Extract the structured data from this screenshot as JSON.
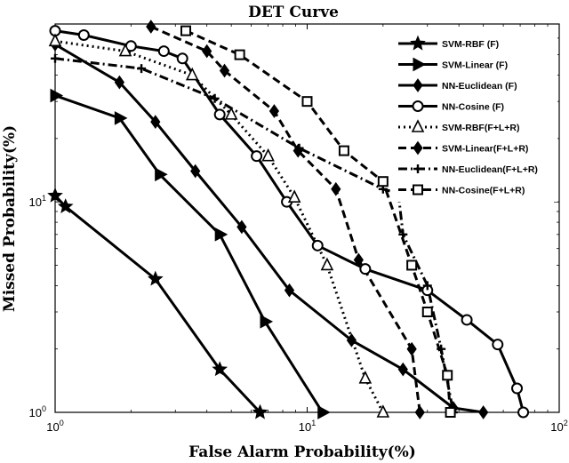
{
  "chart_data": {
    "type": "line",
    "title": "DET Curve",
    "xlabel": "False Alarm Probability(%)",
    "ylabel": "Missed Probability(%)",
    "xscale": "log",
    "yscale": "log",
    "xlim": [
      1,
      100
    ],
    "ylim": [
      1,
      70
    ],
    "xticks": [
      {
        "value": 1,
        "base": "10",
        "exp": "0"
      },
      {
        "value": 10,
        "base": "10",
        "exp": "1"
      },
      {
        "value": 100,
        "base": "10",
        "exp": "2"
      }
    ],
    "yticks": [
      {
        "value": 1,
        "base": "10",
        "exp": "0"
      },
      {
        "value": 10,
        "base": "10",
        "exp": "1"
      }
    ],
    "grid": false,
    "legend_position": "top-right",
    "series": [
      {
        "name": "SVM-RBF (F)",
        "dash": "solid",
        "marker": "star",
        "points": [
          [
            1.0,
            10.7
          ],
          [
            1.1,
            9.5
          ],
          [
            2.5,
            4.3
          ],
          [
            4.5,
            1.6
          ],
          [
            6.5,
            1.0
          ]
        ]
      },
      {
        "name": "SVM-Linear (F)",
        "dash": "solid",
        "marker": "triangle-right",
        "points": [
          [
            1.0,
            32
          ],
          [
            1.8,
            25
          ],
          [
            2.6,
            13.5
          ],
          [
            4.5,
            7.0
          ],
          [
            6.8,
            2.7
          ],
          [
            11.5,
            1.0
          ]
        ]
      },
      {
        "name": "NN-Euclidean (F)",
        "dash": "solid",
        "marker": "diamond",
        "points": [
          [
            1.0,
            56
          ],
          [
            1.8,
            37
          ],
          [
            2.5,
            24
          ],
          [
            3.6,
            14
          ],
          [
            5.5,
            7.6
          ],
          [
            8.5,
            3.8
          ],
          [
            15,
            2.2
          ],
          [
            24,
            1.6
          ],
          [
            38,
            1.05
          ],
          [
            50,
            1.0
          ]
        ]
      },
      {
        "name": "NN-Cosine (F)",
        "dash": "solid",
        "marker": "circle",
        "points": [
          [
            1.0,
            65
          ],
          [
            1.3,
            62
          ],
          [
            2.0,
            55
          ],
          [
            2.7,
            52
          ],
          [
            3.2,
            48
          ],
          [
            4.5,
            26
          ],
          [
            6.3,
            16.5
          ],
          [
            8.3,
            10
          ],
          [
            11,
            6.2
          ],
          [
            17,
            4.8
          ],
          [
            30,
            3.8
          ],
          [
            43,
            2.75
          ],
          [
            57,
            2.1
          ],
          [
            68,
            1.3
          ],
          [
            72,
            1.0
          ]
        ]
      },
      {
        "name": "SVM-RBF(F+L+R)",
        "dash": "dot",
        "marker": "triangle-up",
        "points": [
          [
            1.0,
            58
          ],
          [
            1.9,
            52
          ],
          [
            3.5,
            40
          ],
          [
            5.0,
            26
          ],
          [
            7.0,
            16.5
          ],
          [
            8.9,
            10.5
          ],
          [
            12,
            5.0
          ],
          [
            17,
            1.45
          ],
          [
            20,
            1.0
          ]
        ]
      },
      {
        "name": "SVM-Linear(F+L+R)",
        "dash": "dash",
        "marker": "diamond",
        "points": [
          [
            2.4,
            68
          ],
          [
            4.0,
            52
          ],
          [
            4.7,
            42
          ],
          [
            7.4,
            27
          ],
          [
            9.2,
            17.5
          ],
          [
            13,
            11.5
          ],
          [
            16,
            5.3
          ],
          [
            26,
            2.0
          ],
          [
            28,
            1.0
          ]
        ]
      },
      {
        "name": "NN-Euclidean(F+L+R)",
        "dash": "dashdot",
        "marker": "plus",
        "points": [
          [
            1.0,
            48
          ],
          [
            2.2,
            43
          ],
          [
            4.3,
            31
          ],
          [
            9.3,
            18
          ],
          [
            20,
            11.5
          ],
          [
            23,
            11
          ],
          [
            24,
            7.0
          ],
          [
            30,
            4.0
          ],
          [
            34,
            2.0
          ],
          [
            38,
            1.0
          ]
        ]
      },
      {
        "name": "NN-Cosine(F+L+R)",
        "dash": "dash",
        "marker": "square",
        "points": [
          [
            3.3,
            65
          ],
          [
            5.4,
            50
          ],
          [
            10,
            30
          ],
          [
            14,
            17.5
          ],
          [
            20,
            12.5
          ],
          [
            26,
            5.0
          ],
          [
            30,
            3.0
          ],
          [
            36,
            1.5
          ],
          [
            37,
            1.0
          ]
        ]
      }
    ]
  }
}
